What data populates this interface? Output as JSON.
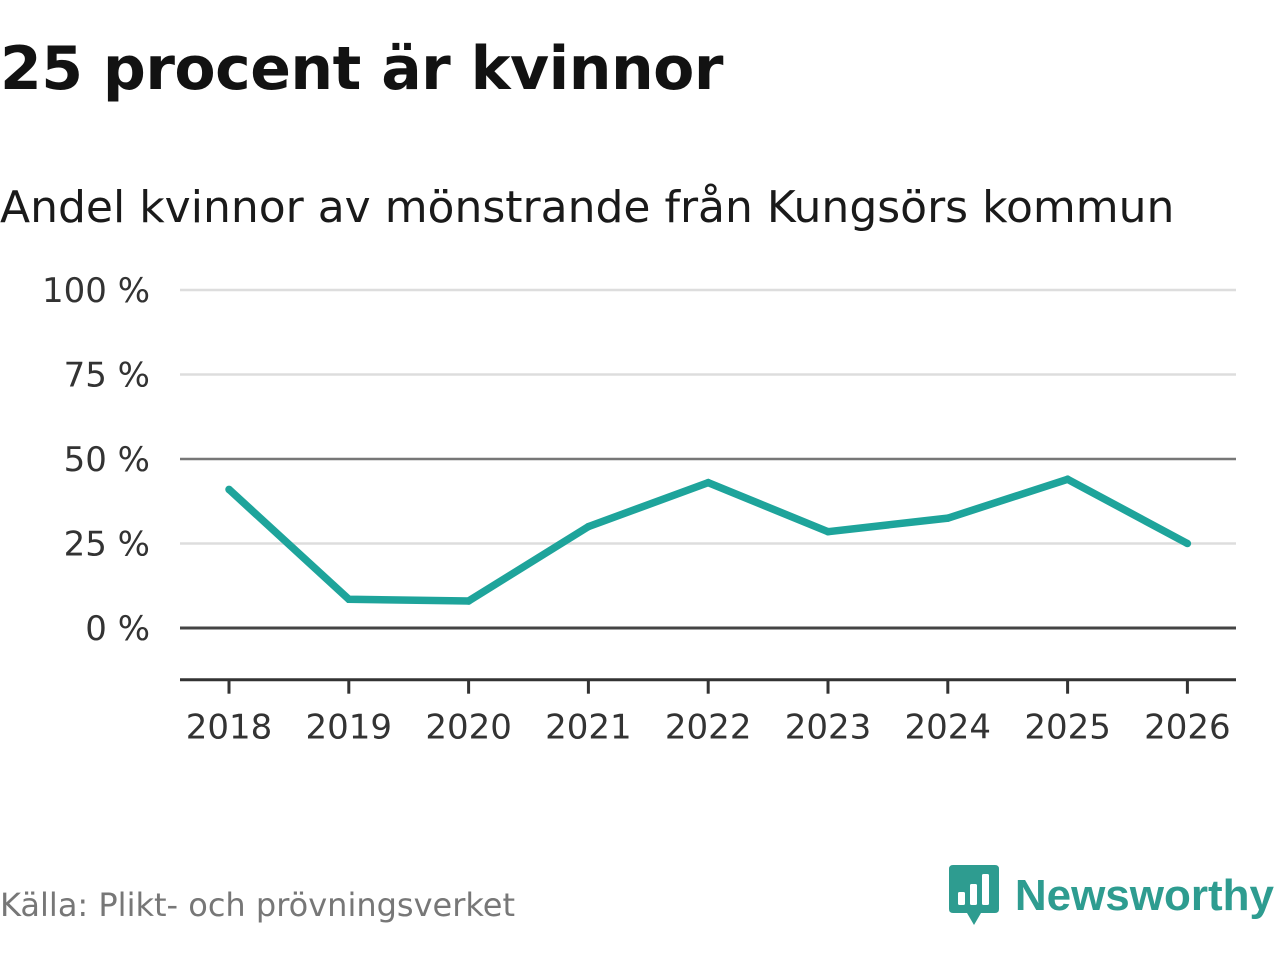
{
  "title": "25 procent är kvinnor",
  "subtitle": "Andel kvinnor av mönstrande från Kungsörs kommun",
  "source": "Källa: Plikt- och prövningsverket",
  "brand": {
    "name": "Newsworthy",
    "icon": "newsworthy-logo-icon",
    "color": "#2e9c90"
  },
  "colors": {
    "line": "#1ea49b",
    "grid": "#dddddd",
    "baseline": "#444444",
    "ref_line": "#777777"
  },
  "chart_data": {
    "type": "line",
    "title": "25 procent är kvinnor",
    "subtitle": "Andel kvinnor av mönstrande från Kungsörs kommun",
    "xlabel": "",
    "ylabel": "",
    "categories": [
      "2018",
      "2019",
      "2020",
      "2021",
      "2022",
      "2023",
      "2024",
      "2025",
      "2026"
    ],
    "series": [
      {
        "name": "Andel kvinnor",
        "values": [
          41,
          8.5,
          8,
          30,
          43,
          28.5,
          32.5,
          44,
          25
        ]
      }
    ],
    "ylim": [
      -15,
      100
    ],
    "yticks": [
      0,
      25,
      50,
      75,
      100
    ],
    "ytick_labels": [
      "0 %",
      "25 %",
      "50 %",
      "75 %",
      "100 %"
    ],
    "reference_line": 50,
    "grid": true,
    "legend": "none"
  }
}
